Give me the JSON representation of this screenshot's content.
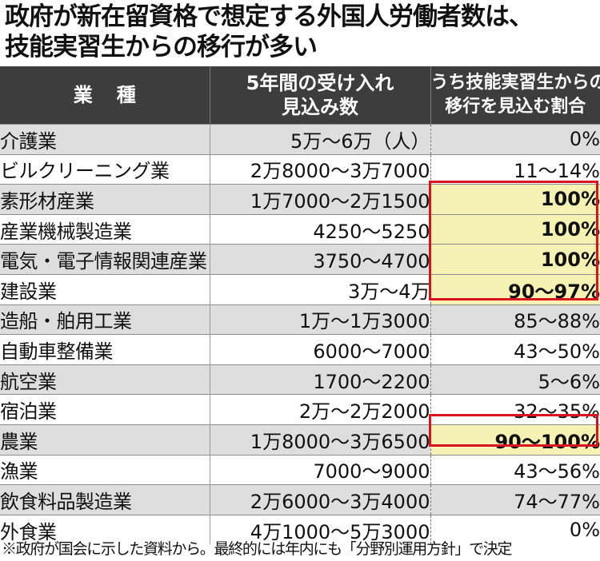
{
  "title": {
    "line1": "政府が新在留資格で想定する外国人労働者数は、",
    "line2": "技能実習生からの移行が多い"
  },
  "table": {
    "headers": {
      "industry": "業種",
      "acceptance_line1": "5年間の受け入れ",
      "acceptance_line2": "見込み数",
      "ratio_line1": "うち技能実習生からの",
      "ratio_line2": "移行を見込む割合"
    },
    "rows": [
      {
        "industry": "介護業",
        "acceptance": "5万～6万（人）",
        "ratio": "0%",
        "highlight": false
      },
      {
        "industry": "ビルクリーニング業",
        "acceptance": "2万8000～3万7000",
        "ratio": "11～14%",
        "highlight": false
      },
      {
        "industry": "素形材産業",
        "acceptance": "1万7000～2万1500",
        "ratio": "100%",
        "highlight": true
      },
      {
        "industry": "産業機械製造業",
        "acceptance": "4250～5250",
        "ratio": "100%",
        "highlight": true
      },
      {
        "industry": "電気・電子情報関連産業",
        "acceptance": "3750～4700",
        "ratio": "100%",
        "highlight": true
      },
      {
        "industry": "建設業",
        "acceptance": "3万～4万",
        "ratio": "90～97%",
        "highlight": true
      },
      {
        "industry": "造船・舶用工業",
        "acceptance": "1万～1万3000",
        "ratio": "85～88%",
        "highlight": false
      },
      {
        "industry": "自動車整備業",
        "acceptance": "6000～7000",
        "ratio": "43～50%",
        "highlight": false
      },
      {
        "industry": "航空業",
        "acceptance": "1700～2200",
        "ratio": "5～6%",
        "highlight": false
      },
      {
        "industry": "宿泊業",
        "acceptance": "2万～2万2000",
        "ratio": "32～35%",
        "highlight": false
      },
      {
        "industry": "農業",
        "acceptance": "1万8000～3万6500",
        "ratio": "90～100%",
        "highlight": true
      },
      {
        "industry": "漁業",
        "acceptance": "7000～9000",
        "ratio": "43～56%",
        "highlight": false
      },
      {
        "industry": "飲食料品製造業",
        "acceptance": "2万6000～3万4000",
        "ratio": "74～77%",
        "highlight": false
      },
      {
        "industry": "外食業",
        "acceptance": "4万1000～5万3000",
        "ratio": "0%",
        "highlight": false
      }
    ]
  },
  "note": "※政府が国会に示した資料から。最終的には年内にも「分野別運用方針」で決定",
  "colors": {
    "header_bg": "#3d3d3d",
    "row_shade": "#dedede",
    "highlight_fill": "#f6f2b4",
    "highlight_border": "#d9141e"
  }
}
